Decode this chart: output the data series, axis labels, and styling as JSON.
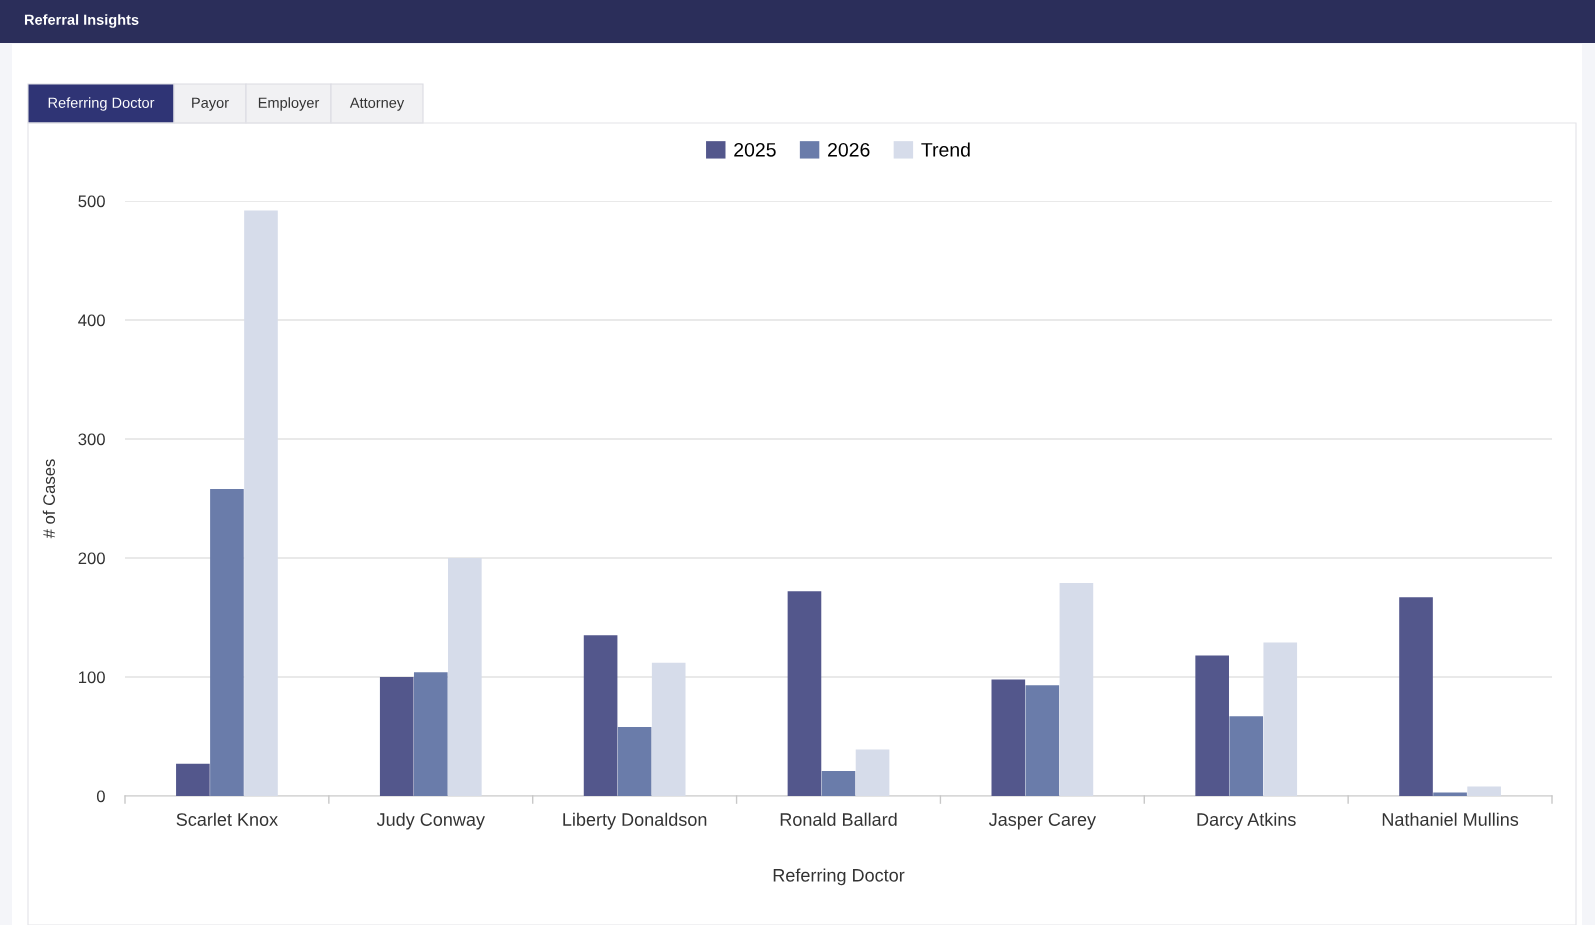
{
  "chart_data": {
    "type": "bar",
    "title": "Referral Insights",
    "annotations": [
      "Referring Doctor",
      "Payor",
      "Employer",
      "Attorney"
    ],
    "xlabel": "Referring Doctor",
    "ylabel": "# of Cases",
    "categories": [
      "Scarlet Knox",
      "Judy Conway",
      "Liberty Donaldson",
      "Ronald Ballard",
      "Jasper Carey",
      "Darcy Atkins",
      "Nathaniel Mullins"
    ],
    "series": [
      {
        "name": "2025",
        "color": "#53578c",
        "values": [
          27,
          100,
          135,
          172,
          98,
          118,
          167
        ]
      },
      {
        "name": "2026",
        "color": "#6a7caa",
        "values": [
          258,
          104,
          58,
          21,
          93,
          67,
          3
        ]
      },
      {
        "name": "Trend",
        "color": "#d6dcea",
        "values": [
          492,
          200,
          112,
          39,
          179,
          129,
          8
        ]
      }
    ],
    "ylim": [
      0,
      500
    ],
    "yticks": [
      0,
      100,
      200,
      300,
      400,
      500
    ],
    "grid": "y",
    "legend": "top"
  }
}
